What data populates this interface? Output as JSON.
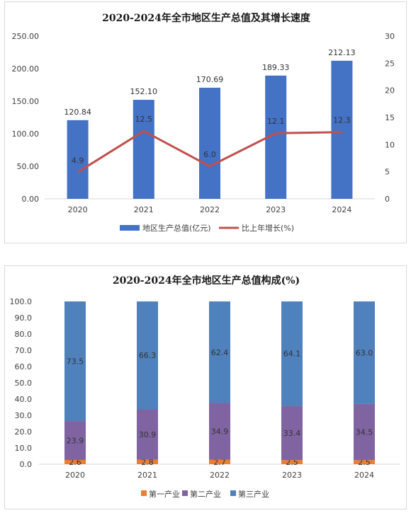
{
  "chart_data": [
    {
      "type": "bar+line",
      "title": "2020-2024年全市地区生产总值及其增长速度",
      "categories": [
        "2020",
        "2021",
        "2022",
        "2023",
        "2024"
      ],
      "series": [
        {
          "name": "地区生产总值(亿元)",
          "type": "bar",
          "axis": "left",
          "values": [
            120.84,
            152.1,
            170.69,
            189.33,
            212.13
          ],
          "color": "#4472C4"
        },
        {
          "name": "比上年增长(%)",
          "type": "line",
          "axis": "right",
          "values": [
            4.9,
            12.5,
            6.0,
            12.1,
            12.3
          ],
          "color": "#C0504D"
        }
      ],
      "ylim_left": [
        0,
        250
      ],
      "ylim_right": [
        0,
        30
      ],
      "yticks_left": [
        "0.00",
        "50.00",
        "100.00",
        "150.00",
        "200.00",
        "250.00"
      ],
      "yticks_right": [
        "0",
        "5",
        "10",
        "15",
        "20",
        "25",
        "30"
      ],
      "bar_labels": [
        "120.84",
        "152.10",
        "170.69",
        "189.33",
        "212.13"
      ],
      "line_labels": [
        "4.9",
        "12.5",
        "6.0",
        "12.1",
        "12.3"
      ],
      "legend": "bottom",
      "grid": false
    },
    {
      "type": "stacked-bar",
      "title": "2020-2024年全市地区生产总值构成(%)",
      "categories": [
        "2020",
        "2021",
        "2022",
        "2023",
        "2024"
      ],
      "series": [
        {
          "name": "第一产业",
          "values": [
            2.6,
            2.8,
            2.7,
            2.5,
            2.5
          ],
          "color": "#ED7D31"
        },
        {
          "name": "第二产业",
          "values": [
            23.9,
            30.9,
            34.9,
            33.4,
            34.5
          ],
          "color": "#8064A2"
        },
        {
          "name": "第三产业",
          "values": [
            73.5,
            66.3,
            62.4,
            64.1,
            63.0
          ],
          "color": "#4F81BD"
        }
      ],
      "labels": [
        [
          "2.6",
          "2.8",
          "2.7",
          "2.5",
          "2.5"
        ],
        [
          "23.9",
          "30.9",
          "34.9",
          "33.4",
          "34.5"
        ],
        [
          "73.5",
          "66.3",
          "62.4",
          "64.1",
          "63.0"
        ]
      ],
      "ylim": [
        0,
        100
      ],
      "yticks": [
        "0.0",
        "10.0",
        "20.0",
        "30.0",
        "40.0",
        "50.0",
        "60.0",
        "70.0",
        "80.0",
        "90.0",
        "100.0"
      ],
      "legend": "bottom",
      "grid": false
    }
  ]
}
